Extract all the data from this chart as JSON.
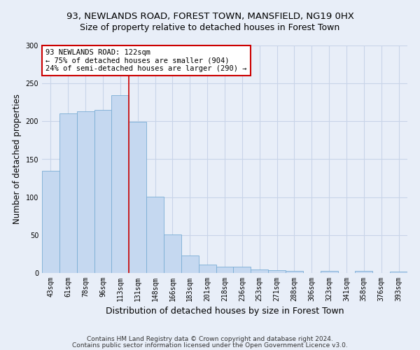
{
  "title": "93, NEWLANDS ROAD, FOREST TOWN, MANSFIELD, NG19 0HX",
  "subtitle": "Size of property relative to detached houses in Forest Town",
  "xlabel": "Distribution of detached houses by size in Forest Town",
  "ylabel": "Number of detached properties",
  "categories": [
    "43sqm",
    "61sqm",
    "78sqm",
    "96sqm",
    "113sqm",
    "131sqm",
    "148sqm",
    "166sqm",
    "183sqm",
    "201sqm",
    "218sqm",
    "236sqm",
    "253sqm",
    "271sqm",
    "288sqm",
    "306sqm",
    "323sqm",
    "341sqm",
    "358sqm",
    "376sqm",
    "393sqm"
  ],
  "values": [
    135,
    210,
    213,
    215,
    234,
    199,
    101,
    51,
    23,
    11,
    8,
    8,
    5,
    4,
    3,
    0,
    3,
    0,
    3,
    0,
    2
  ],
  "bar_color": "#c5d8f0",
  "bar_edge_color": "#7aadd4",
  "property_line_x": 4.5,
  "annotation_line1": "93 NEWLANDS ROAD: 122sqm",
  "annotation_line2": "← 75% of detached houses are smaller (904)",
  "annotation_line3": "24% of semi-detached houses are larger (290) →",
  "annotation_box_color": "#ffffff",
  "annotation_box_edge_color": "#cc0000",
  "property_line_color": "#cc0000",
  "grid_color": "#c8d4e8",
  "background_color": "#e8eef8",
  "footer_line1": "Contains HM Land Registry data © Crown copyright and database right 2024.",
  "footer_line2": "Contains public sector information licensed under the Open Government Licence v3.0.",
  "ylim": [
    0,
    300
  ],
  "yticks": [
    0,
    50,
    100,
    150,
    200,
    250,
    300
  ],
  "title_fontsize": 9.5,
  "subtitle_fontsize": 9,
  "ylabel_fontsize": 8.5,
  "xlabel_fontsize": 9,
  "tick_fontsize": 7,
  "annotation_fontsize": 7.5,
  "footer_fontsize": 6.5
}
